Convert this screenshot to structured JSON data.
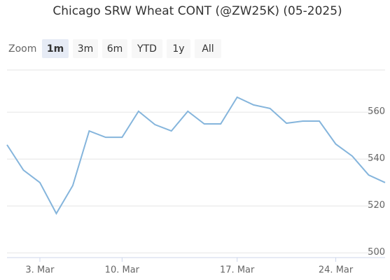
{
  "chart_data": {
    "type": "line",
    "title": "Chicago SRW Wheat CONT (@ZW25K) (05-2025)",
    "zoom_label": "Zoom",
    "zoom_buttons": [
      "1m",
      "3m",
      "6m",
      "YTD",
      "1y",
      "All"
    ],
    "selected_button": 0,
    "categories": [
      null,
      null,
      "3. Mar",
      null,
      null,
      null,
      null,
      "10. Mar",
      null,
      null,
      null,
      null,
      null,
      null,
      "17. Mar",
      null,
      null,
      null,
      null,
      null,
      "24. Mar",
      null,
      null,
      null
    ],
    "series": [
      {
        "name": "Chicago SRW Wheat CONT (@ZW25K)",
        "color": "#85b5dc",
        "values": [
          546.1,
          535.3,
          530,
          516.8,
          528.7,
          552,
          549.3,
          549.3,
          560.4,
          554.7,
          552,
          560.4,
          555,
          555,
          566.4,
          563.1,
          561.6,
          555.3,
          556.2,
          556.2,
          546.4,
          541.3,
          533.2,
          530
        ]
      }
    ],
    "ylim": [
      498,
      578
    ],
    "yticks": [
      500,
      520,
      540,
      560
    ],
    "grid": true
  }
}
